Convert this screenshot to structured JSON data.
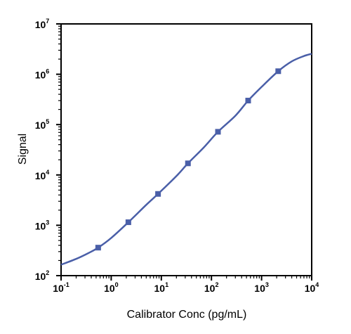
{
  "chart_data": {
    "type": "scatter",
    "title": "",
    "xlabel": "Calibrator Conc (pg/mL)",
    "ylabel": "Signal",
    "x_scale": "log",
    "y_scale": "log",
    "xlim": [
      0.1,
      10000
    ],
    "ylim": [
      100,
      10000000
    ],
    "x_ticks": [
      {
        "base": "10",
        "exp": "-1",
        "value": 0.1
      },
      {
        "base": "10",
        "exp": "0",
        "value": 1
      },
      {
        "base": "10",
        "exp": "1",
        "value": 10
      },
      {
        "base": "10",
        "exp": "2",
        "value": 100
      },
      {
        "base": "10",
        "exp": "3",
        "value": 1000
      },
      {
        "base": "10",
        "exp": "4",
        "value": 10000
      }
    ],
    "y_ticks": [
      {
        "base": "10",
        "exp": "2",
        "value": 100
      },
      {
        "base": "10",
        "exp": "3",
        "value": 1000
      },
      {
        "base": "10",
        "exp": "4",
        "value": 10000
      },
      {
        "base": "10",
        "exp": "5",
        "value": 100000
      },
      {
        "base": "10",
        "exp": "6",
        "value": 1000000
      },
      {
        "base": "10",
        "exp": "7",
        "value": 10000000
      }
    ],
    "grid": false,
    "legend": "none",
    "series": [
      {
        "kind": "points",
        "marker": "square",
        "color": "#4a5fa8",
        "x": [
          0.55,
          2.2,
          8.6,
          34,
          135,
          540,
          2150
        ],
        "y": [
          360,
          1150,
          4200,
          17000,
          72000,
          300000,
          1150000
        ]
      },
      {
        "kind": "fit-curve",
        "color": "#4a5fa8",
        "x": [
          0.1,
          0.2,
          0.35,
          0.55,
          1,
          2.2,
          5,
          8.6,
          20,
          34,
          70,
          135,
          300,
          540,
          1000,
          2150,
          4000,
          7000,
          10000
        ],
        "y": [
          165,
          215,
          280,
          360,
          560,
          1150,
          2550,
          4200,
          9500,
          17000,
          35000,
          72000,
          150000,
          300000,
          560000,
          1150000,
          1800000,
          2300000,
          2550000
        ]
      }
    ]
  }
}
